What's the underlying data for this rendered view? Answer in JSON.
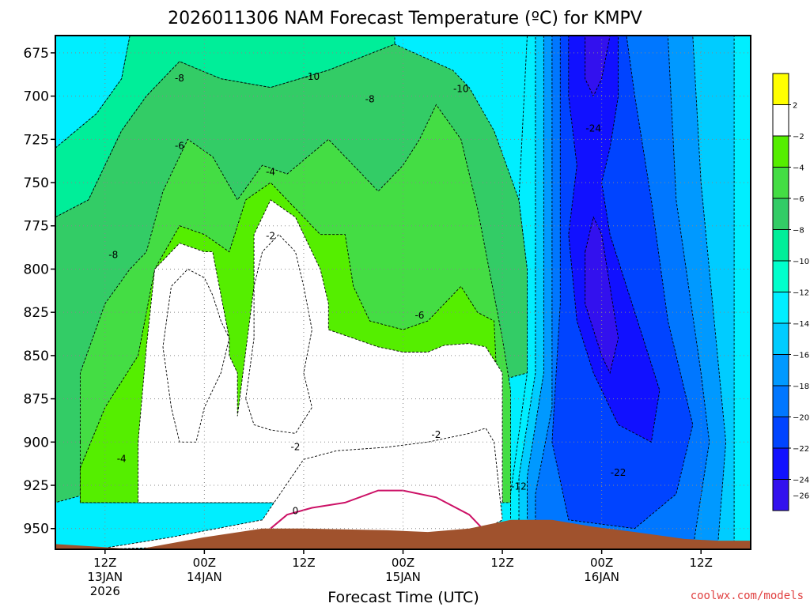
{
  "chart_data": {
    "type": "heatmap",
    "title": "2026011306 NAM Forecast Temperature (ºC) for KMPV",
    "xlabel": "Forecast Time (UTC)",
    "ylabel": "",
    "x_ticks": [
      {
        "hour": 6,
        "lines": [
          "12Z",
          "13JAN",
          "2026"
        ]
      },
      {
        "hour": 18,
        "lines": [
          "00Z",
          "14JAN"
        ]
      },
      {
        "hour": 30,
        "lines": [
          "12Z"
        ]
      },
      {
        "hour": 42,
        "lines": [
          "00Z",
          "15JAN"
        ]
      },
      {
        "hour": 54,
        "lines": [
          "12Z"
        ]
      },
      {
        "hour": 66,
        "lines": [
          "00Z",
          "16JAN"
        ]
      },
      {
        "hour": 78,
        "lines": [
          "12Z"
        ]
      }
    ],
    "xlim": [
      0,
      84
    ],
    "y_ticks": [
      675,
      700,
      725,
      750,
      775,
      800,
      825,
      850,
      875,
      900,
      925,
      950
    ],
    "ylim": [
      962,
      665
    ],
    "grid": true,
    "colorbar": {
      "position": "right",
      "levels": [
        2,
        -2,
        -4,
        -6,
        -8,
        -10,
        -12,
        -14,
        -16,
        -18,
        -20,
        -22,
        -24,
        -26
      ],
      "colors": [
        "#ffff00",
        "#ffffff",
        "#55ee00",
        "#44dd44",
        "#33cc66",
        "#00ee99",
        "#00ffcc",
        "#00eeff",
        "#00ccff",
        "#0099ff",
        "#0077ff",
        "#0044ff",
        "#1111ff",
        "#3311ee"
      ]
    },
    "contour_labels": [
      {
        "hour": 15,
        "p": 690,
        "text": "-8"
      },
      {
        "hour": 31,
        "p": 689,
        "text": "-10"
      },
      {
        "hour": 49,
        "p": 696,
        "text": "-10"
      },
      {
        "hour": 38,
        "p": 702,
        "text": "-8"
      },
      {
        "hour": 15,
        "p": 729,
        "text": "-6"
      },
      {
        "hour": 26,
        "p": 744,
        "text": "-4"
      },
      {
        "hour": 7,
        "p": 792,
        "text": "-8"
      },
      {
        "hour": 26,
        "p": 781,
        "text": "-2"
      },
      {
        "hour": 44,
        "p": 827,
        "text": "-6"
      },
      {
        "hour": 46,
        "p": 896,
        "text": "-2"
      },
      {
        "hour": 29,
        "p": 903,
        "text": "-2"
      },
      {
        "hour": 8,
        "p": 910,
        "text": "-4"
      },
      {
        "hour": 29,
        "p": 940,
        "text": "0"
      },
      {
        "hour": 56,
        "p": 926,
        "text": "-12"
      },
      {
        "hour": 65,
        "p": 719,
        "text": "-24"
      },
      {
        "hour": 68,
        "p": 918,
        "text": "-22"
      }
    ],
    "fields": [
      {
        "name": "bg-cold-left",
        "value": -14,
        "points": [
          [
            0,
            665
          ],
          [
            9,
            665
          ],
          [
            8,
            690
          ],
          [
            5,
            710
          ],
          [
            0,
            730
          ]
        ]
      },
      {
        "name": "band-10",
        "value": -10,
        "points": [
          [
            0,
            730
          ],
          [
            5,
            710
          ],
          [
            8,
            690
          ],
          [
            9,
            665
          ],
          [
            41,
            665
          ],
          [
            41,
            670
          ],
          [
            33,
            685
          ],
          [
            26,
            695
          ],
          [
            20,
            690
          ],
          [
            15,
            680
          ],
          [
            11,
            700
          ],
          [
            8,
            720
          ],
          [
            4,
            760
          ],
          [
            0,
            770
          ]
        ]
      },
      {
        "name": "band-8",
        "value": -8,
        "points": [
          [
            0,
            770
          ],
          [
            4,
            760
          ],
          [
            8,
            720
          ],
          [
            11,
            700
          ],
          [
            15,
            680
          ],
          [
            20,
            690
          ],
          [
            26,
            695
          ],
          [
            33,
            685
          ],
          [
            41,
            670
          ],
          [
            48,
            685
          ],
          [
            50,
            695
          ],
          [
            53,
            720
          ],
          [
            56,
            760
          ],
          [
            57,
            800
          ],
          [
            57,
            860
          ],
          [
            0,
            935
          ]
        ]
      },
      {
        "name": "band-6",
        "value": -6,
        "points": [
          [
            3,
            900
          ],
          [
            3,
            860
          ],
          [
            6,
            820
          ],
          [
            9,
            800
          ],
          [
            11,
            790
          ],
          [
            13,
            755
          ],
          [
            16,
            725
          ],
          [
            19,
            735
          ],
          [
            22,
            760
          ],
          [
            25,
            740
          ],
          [
            28,
            745
          ],
          [
            33,
            725
          ],
          [
            36,
            740
          ],
          [
            39,
            755
          ],
          [
            42,
            740
          ],
          [
            44,
            725
          ],
          [
            46,
            705
          ],
          [
            49,
            725
          ],
          [
            51,
            765
          ],
          [
            52,
            790
          ],
          [
            54,
            840
          ],
          [
            55,
            870
          ],
          [
            55,
            935
          ],
          [
            3,
            935
          ]
        ]
      },
      {
        "name": "band-4",
        "value": -4,
        "points": [
          [
            3,
            915
          ],
          [
            6,
            880
          ],
          [
            10,
            850
          ],
          [
            12,
            800
          ],
          [
            15,
            775
          ],
          [
            18,
            780
          ],
          [
            21,
            790
          ],
          [
            23,
            760
          ],
          [
            26,
            750
          ],
          [
            29,
            765
          ],
          [
            32,
            780
          ],
          [
            35,
            780
          ],
          [
            36,
            810
          ],
          [
            38,
            830
          ],
          [
            42,
            835
          ],
          [
            45,
            830
          ],
          [
            47,
            820
          ],
          [
            49,
            810
          ],
          [
            51,
            825
          ],
          [
            53,
            830
          ],
          [
            54,
            935
          ],
          [
            3,
            935
          ]
        ]
      },
      {
        "name": "band-2",
        "value": -2,
        "points": [
          [
            10,
            900
          ],
          [
            11,
            845
          ],
          [
            12,
            800
          ],
          [
            15,
            785
          ],
          [
            18,
            790
          ],
          [
            19,
            790
          ],
          [
            21,
            840
          ],
          [
            21,
            850
          ],
          [
            22,
            860
          ],
          [
            22,
            885
          ],
          [
            24,
            810
          ],
          [
            24,
            780
          ],
          [
            26,
            760
          ],
          [
            29,
            770
          ],
          [
            31,
            790
          ],
          [
            32,
            800
          ],
          [
            33,
            820
          ],
          [
            33,
            835
          ],
          [
            36,
            840
          ],
          [
            39,
            845
          ],
          [
            42,
            848
          ],
          [
            45,
            848
          ],
          [
            47,
            844
          ],
          [
            50,
            843
          ],
          [
            52,
            845
          ],
          [
            54,
            860
          ],
          [
            54,
            935
          ],
          [
            10,
            935
          ]
        ]
      },
      {
        "name": "white-blob-a",
        "value": 0,
        "points": [
          [
            14,
            880
          ],
          [
            13,
            845
          ],
          [
            14,
            810
          ],
          [
            16,
            800
          ],
          [
            18,
            805
          ],
          [
            19,
            815
          ],
          [
            20,
            830
          ],
          [
            21,
            840
          ],
          [
            20,
            860
          ],
          [
            18,
            880
          ],
          [
            17,
            900
          ],
          [
            15,
            900
          ]
        ]
      },
      {
        "name": "white-blob-b",
        "value": 0,
        "points": [
          [
            23,
            875
          ],
          [
            24,
            840
          ],
          [
            24,
            810
          ],
          [
            25,
            790
          ],
          [
            27,
            780
          ],
          [
            29,
            790
          ],
          [
            30,
            810
          ],
          [
            31,
            835
          ],
          [
            30,
            860
          ],
          [
            31,
            880
          ],
          [
            29,
            895
          ],
          [
            26,
            893
          ],
          [
            24,
            890
          ]
        ]
      },
      {
        "name": "white-base",
        "value": 0,
        "points": [
          [
            5,
            962
          ],
          [
            14,
            955
          ],
          [
            25,
            945
          ],
          [
            30,
            910
          ],
          [
            34,
            905
          ],
          [
            40,
            903
          ],
          [
            45,
            900
          ],
          [
            50,
            895
          ],
          [
            52,
            892
          ],
          [
            53,
            900
          ],
          [
            54,
            945
          ],
          [
            50,
            955
          ],
          [
            40,
            958
          ],
          [
            20,
            960
          ]
        ]
      },
      {
        "name": "cold-right-14",
        "value": -14,
        "points": [
          [
            57,
            665
          ],
          [
            84,
            665
          ],
          [
            84,
            962
          ],
          [
            55,
            962
          ],
          [
            55,
            930
          ],
          [
            57,
            860
          ],
          [
            57,
            800
          ],
          [
            56,
            760
          ]
        ]
      },
      {
        "name": "cold-right-16",
        "value": -16,
        "points": [
          [
            58,
            665
          ],
          [
            82,
            665
          ],
          [
            82,
            962
          ],
          [
            56,
            962
          ],
          [
            56,
            920
          ],
          [
            58,
            860
          ],
          [
            58,
            770
          ]
        ]
      },
      {
        "name": "cold-right-18",
        "value": -18,
        "points": [
          [
            59,
            665
          ],
          [
            77,
            665
          ],
          [
            78,
            750
          ],
          [
            80,
            850
          ],
          [
            81,
            900
          ],
          [
            80,
            962
          ],
          [
            57,
            962
          ],
          [
            57,
            920
          ],
          [
            59,
            860
          ],
          [
            59,
            780
          ]
        ]
      },
      {
        "name": "cold-right-20",
        "value": -20,
        "points": [
          [
            60,
            665
          ],
          [
            74,
            665
          ],
          [
            75,
            760
          ],
          [
            78,
            860
          ],
          [
            79,
            900
          ],
          [
            77,
            962
          ],
          [
            58,
            962
          ],
          [
            58,
            930
          ],
          [
            60,
            880
          ],
          [
            60,
            790
          ]
        ]
      },
      {
        "name": "cold-right-22",
        "value": -22,
        "points": [
          [
            61,
            665
          ],
          [
            69,
            665
          ],
          [
            70,
            700
          ],
          [
            72,
            760
          ],
          [
            74,
            830
          ],
          [
            77,
            890
          ],
          [
            75,
            930
          ],
          [
            70,
            950
          ],
          [
            62,
            945
          ],
          [
            60,
            900
          ],
          [
            61,
            820
          ]
        ]
      },
      {
        "name": "cold-right-24",
        "value": -24,
        "points": [
          [
            62,
            665
          ],
          [
            68,
            665
          ],
          [
            68,
            700
          ],
          [
            67,
            730
          ],
          [
            66,
            750
          ],
          [
            67,
            780
          ],
          [
            69,
            810
          ],
          [
            71,
            840
          ],
          [
            73,
            870
          ],
          [
            72,
            900
          ],
          [
            68,
            890
          ],
          [
            65,
            860
          ],
          [
            63,
            830
          ],
          [
            62,
            780
          ],
          [
            63,
            740
          ],
          [
            62,
            700
          ]
        ]
      },
      {
        "name": "cold-right-26",
        "value": -26,
        "points": [
          [
            64,
            665
          ],
          [
            67,
            665
          ],
          [
            66,
            690
          ],
          [
            65,
            700
          ],
          [
            64,
            690
          ]
        ]
      },
      {
        "name": "cold-right-26b",
        "value": -26,
        "points": [
          [
            64,
            790
          ],
          [
            65,
            770
          ],
          [
            66,
            780
          ],
          [
            67,
            810
          ],
          [
            68,
            840
          ],
          [
            67,
            860
          ],
          [
            66,
            850
          ],
          [
            64,
            820
          ]
        ]
      }
    ],
    "warm_contour": {
      "value": 0,
      "points": [
        [
          26,
          950
        ],
        [
          28,
          942
        ],
        [
          31,
          938
        ],
        [
          35,
          935
        ],
        [
          39,
          928
        ],
        [
          42,
          928
        ],
        [
          46,
          932
        ],
        [
          50,
          942
        ],
        [
          52,
          952
        ],
        [
          54,
          950
        ]
      ]
    },
    "terrain_surface": {
      "points": [
        [
          0,
          959
        ],
        [
          10,
          962
        ],
        [
          18,
          955
        ],
        [
          25,
          950
        ],
        [
          30,
          950
        ],
        [
          40,
          951
        ],
        [
          45,
          952
        ],
        [
          50,
          950
        ],
        [
          55,
          945
        ],
        [
          60,
          945
        ],
        [
          65,
          949
        ],
        [
          70,
          952
        ],
        [
          76,
          956
        ],
        [
          80,
          957
        ],
        [
          84,
          957
        ]
      ]
    }
  },
  "credit": "coolwx.com/models"
}
